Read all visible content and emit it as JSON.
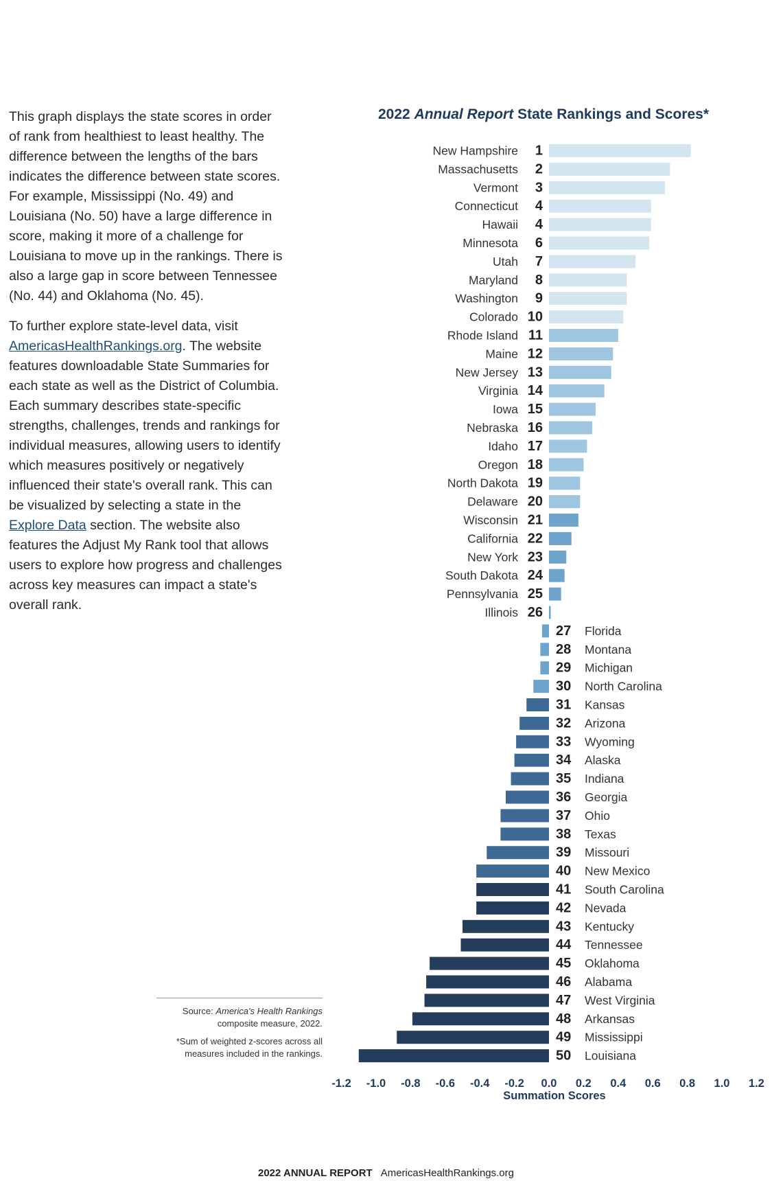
{
  "intro": {
    "p1": "This graph displays the state scores in order of rank from healthiest to least healthy. The difference between the lengths of the bars indicates the difference between state scores. For example, Mississippi (No. 49) and Louisiana (No. 50) have a large difference in score, making it more of a challenge for Louisiana to move up in the rankings. There is also a large gap in score between Tennessee (No. 44) and Oklahoma (No. 45).",
    "p2_pre": "To further explore state-level data, visit ",
    "p2_link1": "AmericasHealthRankings.org",
    "p2_mid": ". The website features downloadable State Summaries for each state as well as the District of Columbia. Each summary describes state-specific strengths, challenges, trends and rankings for individual measures, allowing users to identify which measures positively or negatively influenced their state's overall rank. This can be visualized by selecting a state in the ",
    "p2_link2": "Explore Data",
    "p2_post": " section. The website also features the Adjust My Rank tool that allows users to explore how progress and challenges across key measures can impact a state's overall rank."
  },
  "source": {
    "label": "Source: ",
    "name": "America's Health Rankings",
    "rest": "composite measure, 2022.",
    "footnote": "*Sum of weighted z-scores across all measures included in the rankings."
  },
  "footer": {
    "title": "2022 ANNUAL REPORT",
    "url": "AmericasHealthRankings.org"
  },
  "colors": {
    "title": "#1e3a5f",
    "tier1": "#d3e6f0",
    "tier2": "#9ec6e0",
    "tier3": "#6ea3cc",
    "tier4": "#3d6994",
    "tier5": "#253d5c"
  },
  "chart_data": {
    "type": "bar",
    "orientation": "horizontal",
    "title_pre": "2022 ",
    "title_italic": "Annual Report",
    "title_post": " State Rankings and Scores*",
    "xlabel": "Summation Scores",
    "xlim": [
      -1.2,
      1.2
    ],
    "xticks": [
      "-1.2",
      "-1.0",
      "-0.8",
      "-0.6",
      "-0.4",
      "-0.2",
      "0.0",
      "0.2",
      "0.4",
      "0.6",
      "0.8",
      "1.0",
      "1.2"
    ],
    "grid": false,
    "rows": [
      {
        "state": "New Hampshire",
        "rank": 1,
        "score": 0.82
      },
      {
        "state": "Massachusetts",
        "rank": 2,
        "score": 0.7
      },
      {
        "state": "Vermont",
        "rank": 3,
        "score": 0.67
      },
      {
        "state": "Connecticut",
        "rank": 4,
        "score": 0.59
      },
      {
        "state": "Hawaii",
        "rank": 4,
        "score": 0.59
      },
      {
        "state": "Minnesota",
        "rank": 6,
        "score": 0.58
      },
      {
        "state": "Utah",
        "rank": 7,
        "score": 0.5
      },
      {
        "state": "Maryland",
        "rank": 8,
        "score": 0.45
      },
      {
        "state": "Washington",
        "rank": 9,
        "score": 0.45
      },
      {
        "state": "Colorado",
        "rank": 10,
        "score": 0.43
      },
      {
        "state": "Rhode Island",
        "rank": 11,
        "score": 0.4
      },
      {
        "state": "Maine",
        "rank": 12,
        "score": 0.37
      },
      {
        "state": "New Jersey",
        "rank": 13,
        "score": 0.36
      },
      {
        "state": "Virginia",
        "rank": 14,
        "score": 0.32
      },
      {
        "state": "Iowa",
        "rank": 15,
        "score": 0.27
      },
      {
        "state": "Nebraska",
        "rank": 16,
        "score": 0.25
      },
      {
        "state": "Idaho",
        "rank": 17,
        "score": 0.22
      },
      {
        "state": "Oregon",
        "rank": 18,
        "score": 0.2
      },
      {
        "state": "North Dakota",
        "rank": 19,
        "score": 0.18
      },
      {
        "state": "Delaware",
        "rank": 20,
        "score": 0.18
      },
      {
        "state": "Wisconsin",
        "rank": 21,
        "score": 0.17
      },
      {
        "state": "California",
        "rank": 22,
        "score": 0.13
      },
      {
        "state": "New York",
        "rank": 23,
        "score": 0.1
      },
      {
        "state": "South Dakota",
        "rank": 24,
        "score": 0.09
      },
      {
        "state": "Pennsylvania",
        "rank": 25,
        "score": 0.07
      },
      {
        "state": "Illinois",
        "rank": 26,
        "score": 0.01
      },
      {
        "state": "Florida",
        "rank": 27,
        "score": -0.04
      },
      {
        "state": "Montana",
        "rank": 28,
        "score": -0.05
      },
      {
        "state": "Michigan",
        "rank": 29,
        "score": -0.05
      },
      {
        "state": "North Carolina",
        "rank": 30,
        "score": -0.09
      },
      {
        "state": "Kansas",
        "rank": 31,
        "score": -0.13
      },
      {
        "state": "Arizona",
        "rank": 32,
        "score": -0.17
      },
      {
        "state": "Wyoming",
        "rank": 33,
        "score": -0.19
      },
      {
        "state": "Alaska",
        "rank": 34,
        "score": -0.2
      },
      {
        "state": "Indiana",
        "rank": 35,
        "score": -0.22
      },
      {
        "state": "Georgia",
        "rank": 36,
        "score": -0.25
      },
      {
        "state": "Ohio",
        "rank": 37,
        "score": -0.28
      },
      {
        "state": "Texas",
        "rank": 38,
        "score": -0.28
      },
      {
        "state": "Missouri",
        "rank": 39,
        "score": -0.36
      },
      {
        "state": "New Mexico",
        "rank": 40,
        "score": -0.42
      },
      {
        "state": "South Carolina",
        "rank": 41,
        "score": -0.42
      },
      {
        "state": "Nevada",
        "rank": 42,
        "score": -0.42
      },
      {
        "state": "Kentucky",
        "rank": 43,
        "score": -0.5
      },
      {
        "state": "Tennessee",
        "rank": 44,
        "score": -0.51
      },
      {
        "state": "Oklahoma",
        "rank": 45,
        "score": -0.69
      },
      {
        "state": "Alabama",
        "rank": 46,
        "score": -0.71
      },
      {
        "state": "West Virginia",
        "rank": 47,
        "score": -0.72
      },
      {
        "state": "Arkansas",
        "rank": 48,
        "score": -0.79
      },
      {
        "state": "Mississippi",
        "rank": 49,
        "score": -0.88
      },
      {
        "state": "Louisiana",
        "rank": 50,
        "score": -1.1
      }
    ]
  }
}
